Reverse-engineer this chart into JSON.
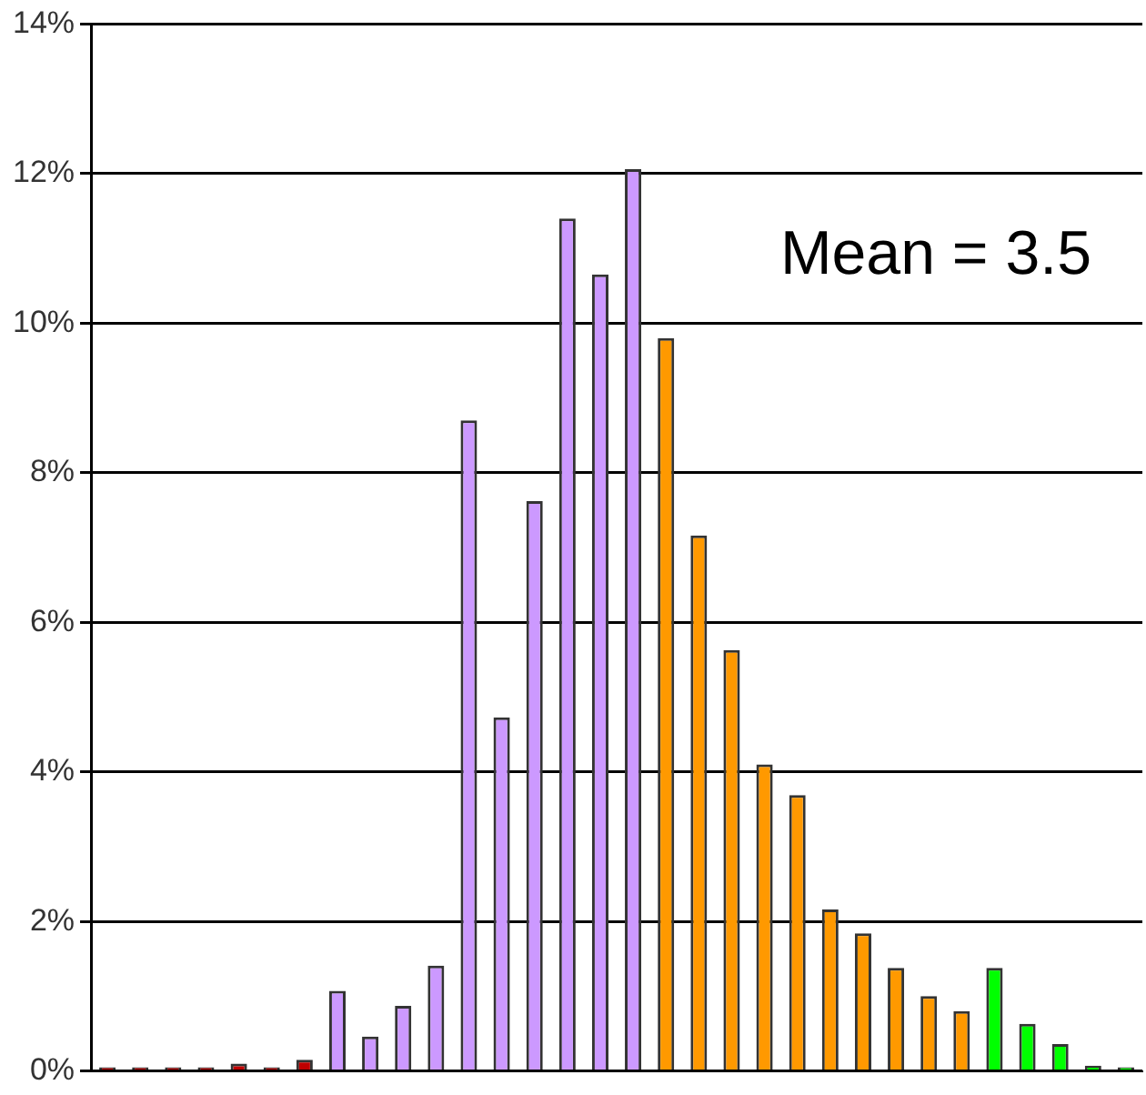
{
  "chart_data": {
    "type": "bar",
    "categories": [
      null,
      null,
      null,
      null,
      null,
      null,
      null,
      null,
      null,
      null,
      null,
      null,
      null,
      null,
      null,
      null,
      null,
      null,
      null,
      null,
      null,
      null,
      null,
      null,
      null,
      null,
      null,
      null,
      null,
      null,
      null,
      null
    ],
    "values": [
      0.05,
      0.05,
      0.05,
      0.05,
      0.1,
      0.05,
      0.15,
      1.07,
      0.46,
      0.87,
      1.41,
      8.7,
      4.73,
      7.62,
      11.4,
      10.65,
      12.06,
      9.8,
      7.16,
      5.63,
      4.1,
      3.69,
      2.16,
      1.84,
      1.38,
      1.0,
      0.8,
      1.38,
      0.63,
      0.36,
      0.07,
      0.05
    ],
    "colors": [
      "#c00000",
      "#c00000",
      "#c00000",
      "#c00000",
      "#c00000",
      "#c00000",
      "#c00000",
      "#cc99ff",
      "#cc99ff",
      "#cc99ff",
      "#cc99ff",
      "#cc99ff",
      "#cc99ff",
      "#cc99ff",
      "#cc99ff",
      "#cc99ff",
      "#cc99ff",
      "#ff9900",
      "#ff9900",
      "#ff9900",
      "#ff9900",
      "#ff9900",
      "#ff9900",
      "#ff9900",
      "#ff9900",
      "#ff9900",
      "#ff9900",
      "#00ff00",
      "#00ff00",
      "#00ff00",
      "#00ff00",
      "#00ff00"
    ],
    "ylim": [
      0,
      14
    ],
    "yticks": [
      {
        "value": 0,
        "label": "0%"
      },
      {
        "value": 2,
        "label": "2%"
      },
      {
        "value": 4,
        "label": "4%"
      },
      {
        "value": 6,
        "label": "6%"
      },
      {
        "value": 8,
        "label": "8%"
      },
      {
        "value": 10,
        "label": "10%"
      },
      {
        "value": 12,
        "label": "12%"
      },
      {
        "value": 14,
        "label": "14%"
      }
    ],
    "grid": "y",
    "annotations": [
      "Mean = 3.5"
    ]
  }
}
